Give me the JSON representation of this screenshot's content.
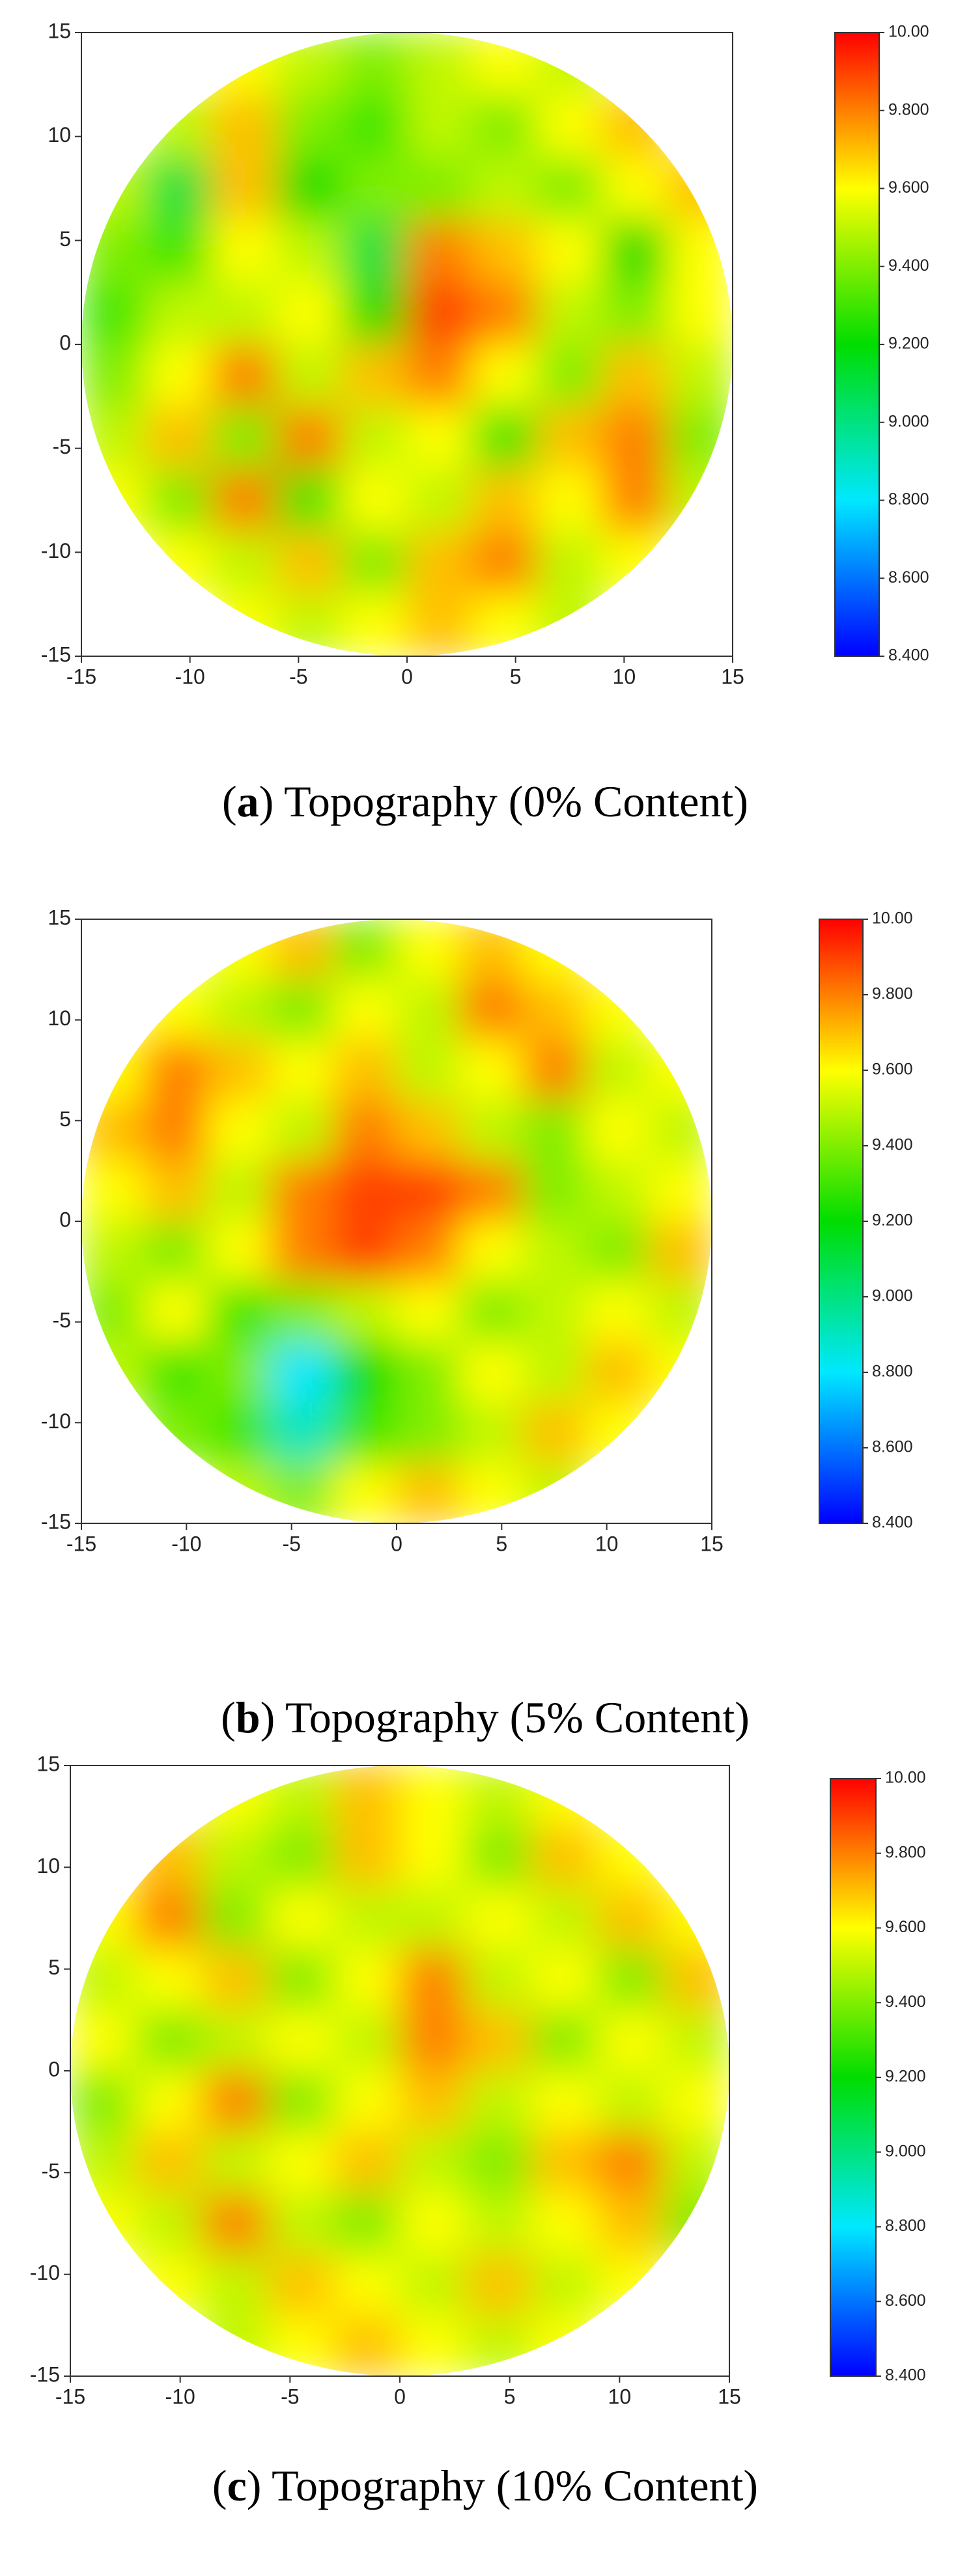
{
  "chart_data": [
    {
      "type": "contour",
      "caption": [
        "(",
        "a",
        ") Topography (0% Content)"
      ],
      "xlim": [
        -15,
        15
      ],
      "ylim": [
        -15,
        15
      ],
      "xticks": [
        -15,
        -10,
        -5,
        0,
        5,
        10,
        15
      ],
      "yticks": [
        -15,
        -10,
        -5,
        0,
        5,
        10,
        15
      ],
      "colorbar": {
        "lim": [
          8.4,
          10
        ],
        "colors": [
          "#0000ff",
          "#00e8ff",
          "#00dd00",
          "#ffff00",
          "#ff0000"
        ],
        "ticks": [
          {
            "value": 10,
            "label": "10.00"
          },
          {
            "value": 9.8,
            "label": "9.800"
          },
          {
            "value": 9.6,
            "label": "9.600"
          },
          {
            "value": 9.4,
            "label": "9.400"
          },
          {
            "value": 9.2,
            "label": "9.200"
          },
          {
            "value": 9,
            "label": "9.000"
          },
          {
            "value": 8.8,
            "label": "8.800"
          },
          {
            "value": 8.6,
            "label": "8.600"
          },
          {
            "value": 8.4,
            "label": "8.400"
          }
        ]
      },
      "z": [
        [
          null,
          null,
          9.6,
          9.5,
          9.4,
          9.5,
          9.6,
          9.5,
          null,
          null
        ],
        [
          null,
          9.5,
          9.7,
          9.4,
          9.3,
          9.5,
          9.4,
          9.6,
          9.7,
          null
        ],
        [
          9.5,
          9.1,
          9.7,
          9.2,
          9.4,
          9.4,
          9.5,
          9.4,
          9.6,
          9.7
        ],
        [
          9.4,
          9.3,
          9.6,
          9.5,
          9.1,
          9.8,
          9.7,
          9.6,
          9.2,
          9.6
        ],
        [
          9.3,
          9.5,
          9.5,
          9.6,
          9.2,
          9.9,
          9.8,
          9.5,
          9.4,
          9.6
        ],
        [
          9.4,
          9.6,
          9.8,
          9.5,
          9.7,
          9.8,
          9.6,
          9.4,
          9.7,
          9.5
        ],
        [
          9.5,
          9.7,
          9.4,
          9.8,
          9.5,
          9.6,
          9.3,
          9.7,
          9.8,
          9.4
        ],
        [
          9.6,
          9.4,
          9.8,
          9.3,
          9.6,
          9.5,
          9.7,
          9.6,
          9.8,
          9.5
        ],
        [
          null,
          9.6,
          9.5,
          9.7,
          9.4,
          9.7,
          9.8,
          9.5,
          9.6,
          null
        ],
        [
          null,
          null,
          9.6,
          9.5,
          9.6,
          9.7,
          9.6,
          9.5,
          null,
          null
        ]
      ]
    },
    {
      "type": "contour",
      "caption": [
        "(",
        "b",
        ") Topography (5% Content)"
      ],
      "xlim": [
        -15,
        15
      ],
      "ylim": [
        -15,
        15
      ],
      "xticks": [
        -15,
        -10,
        -5,
        0,
        5,
        10,
        15
      ],
      "yticks": [
        -15,
        -10,
        -5,
        0,
        5,
        10,
        15
      ],
      "colorbar": {
        "lim": [
          8.4,
          10
        ],
        "colors": [
          "#0000ff",
          "#00e8ff",
          "#00dd00",
          "#ffff00",
          "#ff0000"
        ],
        "ticks": [
          {
            "value": 10,
            "label": "10.00"
          },
          {
            "value": 9.8,
            "label": "9.800"
          },
          {
            "value": 9.6,
            "label": "9.600"
          },
          {
            "value": 9.4,
            "label": "9.400"
          },
          {
            "value": 9.2,
            "label": "9.200"
          },
          {
            "value": 9,
            "label": "9.000"
          },
          {
            "value": 8.8,
            "label": "8.800"
          },
          {
            "value": 8.6,
            "label": "8.600"
          },
          {
            "value": 8.4,
            "label": "8.400"
          }
        ]
      },
      "z": [
        [
          null,
          null,
          9.6,
          9.7,
          9.4,
          9.6,
          9.7,
          9.6,
          null,
          null
        ],
        [
          null,
          9.6,
          9.5,
          9.4,
          9.6,
          9.5,
          9.8,
          9.7,
          9.6,
          null
        ],
        [
          9.6,
          9.8,
          9.7,
          9.6,
          9.7,
          9.5,
          9.6,
          9.8,
          9.5,
          9.6
        ],
        [
          9.7,
          9.8,
          9.6,
          9.5,
          9.8,
          9.7,
          9.5,
          9.4,
          9.6,
          9.5
        ],
        [
          9.6,
          9.7,
          9.5,
          9.8,
          9.9,
          9.9,
          9.8,
          9.4,
          9.5,
          9.6
        ],
        [
          9.5,
          9.4,
          9.6,
          9.8,
          9.9,
          9.8,
          9.6,
          9.5,
          9.4,
          9.7
        ],
        [
          9.4,
          9.6,
          9.3,
          9.4,
          9.5,
          9.6,
          9.4,
          9.5,
          9.6,
          9.5
        ],
        [
          9.5,
          9.3,
          9.4,
          8.8,
          9.2,
          9.4,
          9.6,
          9.5,
          9.7,
          9.6
        ],
        [
          null,
          9.4,
          9.3,
          8.9,
          9.3,
          9.4,
          9.5,
          9.7,
          9.6,
          null
        ],
        [
          null,
          null,
          9.5,
          9.4,
          9.6,
          9.7,
          9.6,
          9.5,
          null,
          null
        ]
      ]
    },
    {
      "type": "contour",
      "caption": [
        "(",
        "c",
        ") Topography (10% Content)"
      ],
      "xlim": [
        -15,
        15
      ],
      "ylim": [
        -15,
        15
      ],
      "xticks": [
        -15,
        -10,
        -5,
        0,
        5,
        10,
        15
      ],
      "yticks": [
        -15,
        -10,
        -5,
        0,
        5,
        10,
        15
      ],
      "colorbar": {
        "lim": [
          8.4,
          10
        ],
        "colors": [
          "#0000ff",
          "#00e8ff",
          "#00dd00",
          "#ffff00",
          "#ff0000"
        ],
        "ticks": [
          {
            "value": 10,
            "label": "10.00"
          },
          {
            "value": 9.8,
            "label": "9.800"
          },
          {
            "value": 9.6,
            "label": "9.600"
          },
          {
            "value": 9.4,
            "label": "9.400"
          },
          {
            "value": 9.2,
            "label": "9.200"
          },
          {
            "value": 9,
            "label": "9.000"
          },
          {
            "value": 8.8,
            "label": "8.800"
          },
          {
            "value": 8.6,
            "label": "8.600"
          },
          {
            "value": 8.4,
            "label": "8.400"
          }
        ]
      },
      "z": [
        [
          null,
          null,
          9.6,
          9.5,
          9.7,
          9.6,
          9.5,
          9.6,
          null,
          null
        ],
        [
          null,
          9.7,
          9.5,
          9.4,
          9.7,
          9.6,
          9.4,
          9.7,
          9.6,
          null
        ],
        [
          9.6,
          9.8,
          9.4,
          9.6,
          9.5,
          9.5,
          9.6,
          9.5,
          9.7,
          9.6
        ],
        [
          9.5,
          9.6,
          9.7,
          9.4,
          9.6,
          9.8,
          9.5,
          9.6,
          9.4,
          9.7
        ],
        [
          9.6,
          9.4,
          9.5,
          9.6,
          9.5,
          9.8,
          9.7,
          9.4,
          9.6,
          9.5
        ],
        [
          9.4,
          9.6,
          9.8,
          9.4,
          9.6,
          9.7,
          9.5,
          9.6,
          9.5,
          9.6
        ],
        [
          9.5,
          9.7,
          9.5,
          9.6,
          9.7,
          9.5,
          9.4,
          9.7,
          9.8,
          9.5
        ],
        [
          9.6,
          9.5,
          9.8,
          9.5,
          9.4,
          9.6,
          9.5,
          9.6,
          9.7,
          9.4
        ],
        [
          null,
          9.6,
          9.5,
          9.7,
          9.6,
          9.5,
          9.7,
          9.5,
          9.6,
          null
        ],
        [
          null,
          null,
          9.5,
          9.6,
          9.7,
          9.6,
          9.5,
          9.6,
          null,
          null
        ]
      ]
    }
  ]
}
